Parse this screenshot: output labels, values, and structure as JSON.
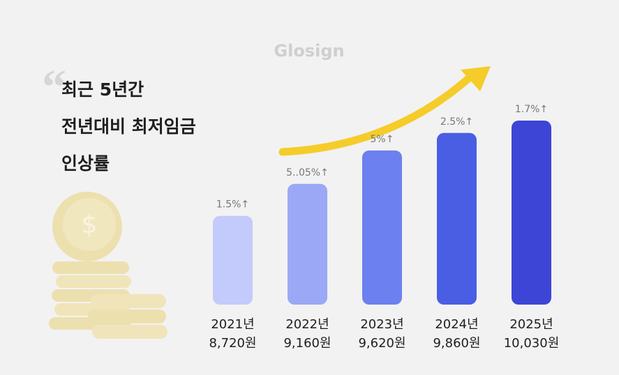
{
  "chart_data": {
    "type": "bar",
    "brand": "Glosign",
    "title_lines": [
      "최근 5년간",
      "전년대비 최저임금",
      "인상률"
    ],
    "categories": [
      "2021년",
      "2022년",
      "2023년",
      "2024년",
      "2025년"
    ],
    "values": [
      8720,
      9160,
      9620,
      9860,
      10030
    ],
    "value_labels": [
      "8,720원",
      "9,160원",
      "9,620원",
      "9,860원",
      "10,030원"
    ],
    "growth_labels": [
      "1.5%↑",
      "5..05%↑",
      "5%↑",
      "2.5%↑",
      "1.7%↑"
    ],
    "colors": [
      "#c3cafc",
      "#9ba8f6",
      "#6c80f0",
      "#4a5ee4",
      "#3d45d6"
    ],
    "ylim": [
      7500,
      10500
    ]
  }
}
